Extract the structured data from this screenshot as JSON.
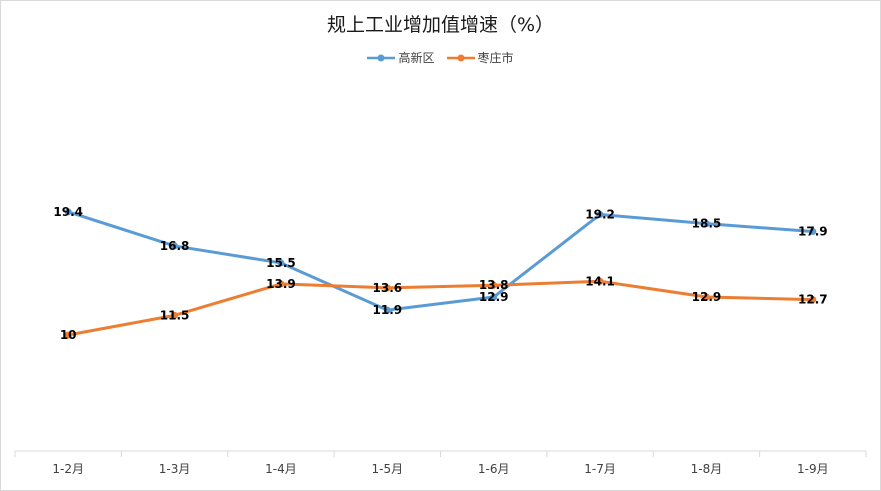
{
  "chart_data": {
    "type": "line",
    "title": "规上工业增加值增速（%）",
    "categories": [
      "1-2月",
      "1-3月",
      "1-4月",
      "1-5月",
      "1-6月",
      "1-7月",
      "1-8月",
      "1-9月"
    ],
    "series": [
      {
        "name": "高新区",
        "color": "#5b9bd5",
        "values": [
          19.4,
          16.8,
          15.5,
          11.9,
          12.9,
          19.2,
          18.5,
          17.9
        ],
        "labels": [
          "19.4",
          "16.8",
          "15.5",
          "11.9",
          "12.9",
          "19.2",
          "18.5",
          "17.9"
        ]
      },
      {
        "name": "枣庄市",
        "color": "#ed7d31",
        "values": [
          10,
          11.5,
          13.9,
          13.6,
          13.8,
          14.1,
          12.9,
          12.7
        ],
        "labels": [
          "10",
          "11.5",
          "13.9",
          "13.6",
          "13.8",
          "14.1",
          "12.9",
          "12.7"
        ]
      }
    ],
    "legend_position": "top",
    "grid": false,
    "ylim": [
      0,
      20
    ]
  }
}
